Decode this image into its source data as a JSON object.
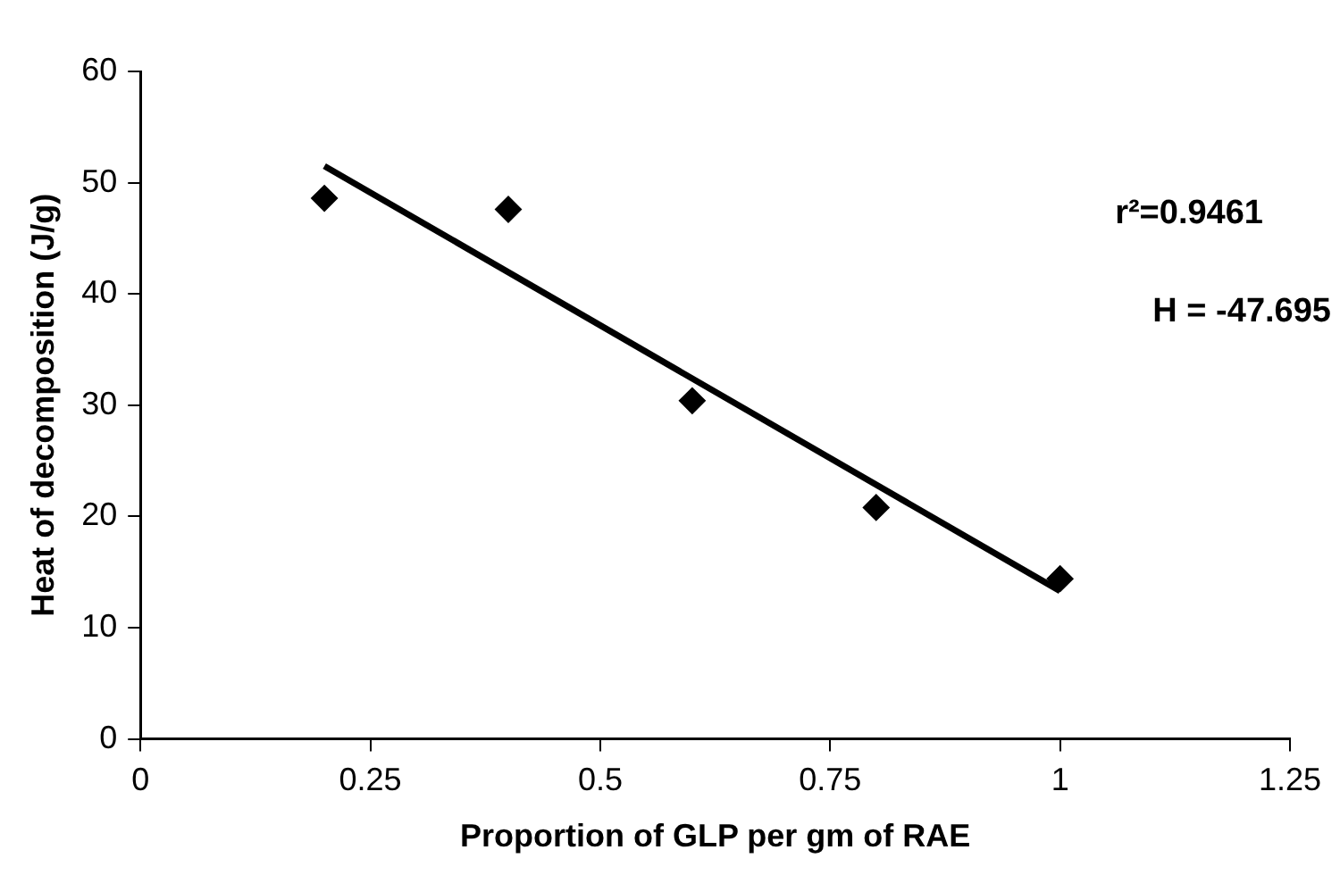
{
  "chart_data": {
    "type": "scatter",
    "xlabel": "Proportion of GLP per gm of RAE",
    "ylabel": "Heat of decomposition (J/g)",
    "xlim": [
      0,
      1.25
    ],
    "xticks": [
      0,
      0.25,
      0.5,
      0.75,
      1,
      1.25
    ],
    "ylim": [
      0,
      60
    ],
    "yticks": [
      0,
      10,
      20,
      30,
      40,
      50,
      60
    ],
    "grid": false,
    "legend": false,
    "marker": "diamond",
    "series": [
      {
        "type": "scatter",
        "color": "#000000",
        "x": [
          0.2,
          0.4,
          0.6,
          0.8,
          1.0
        ],
        "values": [
          48.6,
          47.6,
          30.4,
          20.8,
          14.4
        ]
      },
      {
        "type": "line",
        "color": "#000000",
        "x": [
          0.2,
          1.0
        ],
        "values": [
          51.5,
          13.3
        ],
        "marker": "none",
        "line_style": "solid"
      }
    ],
    "annotations": [
      "r²=0.9461",
      "H = -47.695"
    ]
  }
}
